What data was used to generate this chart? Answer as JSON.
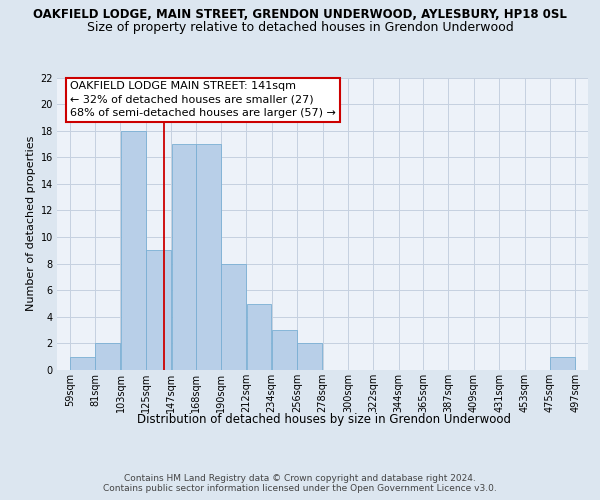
{
  "title": "OAKFIELD LODGE, MAIN STREET, GRENDON UNDERWOOD, AYLESBURY, HP18 0SL",
  "subtitle": "Size of property relative to detached houses in Grendon Underwood",
  "xlabel": "Distribution of detached houses by size in Grendon Underwood",
  "ylabel": "Number of detached properties",
  "bin_edges": [
    59,
    81,
    103,
    125,
    147,
    168,
    190,
    212,
    234,
    256,
    278,
    300,
    322,
    344,
    365,
    387,
    409,
    431,
    453,
    475,
    497
  ],
  "bar_labels": [
    "59sqm",
    "81sqm",
    "103sqm",
    "125sqm",
    "147sqm",
    "168sqm",
    "190sqm",
    "212sqm",
    "234sqm",
    "256sqm",
    "278sqm",
    "300sqm",
    "322sqm",
    "344sqm",
    "365sqm",
    "387sqm",
    "409sqm",
    "431sqm",
    "453sqm",
    "475sqm",
    "497sqm"
  ],
  "values": [
    1,
    2,
    18,
    9,
    17,
    17,
    8,
    5,
    3,
    2,
    0,
    0,
    0,
    0,
    0,
    0,
    0,
    0,
    0,
    1
  ],
  "bar_color": "#b8cfe8",
  "bar_edgecolor": "#7aafd4",
  "reference_line_x": 141,
  "annotation_text": "OAKFIELD LODGE MAIN STREET: 141sqm\n← 32% of detached houses are smaller (27)\n68% of semi-detached houses are larger (57) →",
  "annotation_box_facecolor": "#ffffff",
  "annotation_box_edgecolor": "#cc0000",
  "reference_line_color": "#cc0000",
  "ylim": [
    0,
    22
  ],
  "yticks": [
    0,
    2,
    4,
    6,
    8,
    10,
    12,
    14,
    16,
    18,
    20,
    22
  ],
  "background_color": "#dce6f0",
  "plot_background_color": "#edf2f9",
  "grid_color": "#c5d0e0",
  "footer_line1": "Contains HM Land Registry data © Crown copyright and database right 2024.",
  "footer_line2": "Contains public sector information licensed under the Open Government Licence v3.0.",
  "title_fontsize": 8.5,
  "subtitle_fontsize": 9,
  "xlabel_fontsize": 8.5,
  "ylabel_fontsize": 8,
  "annotation_fontsize": 8,
  "tick_fontsize": 7,
  "footer_fontsize": 6.5
}
